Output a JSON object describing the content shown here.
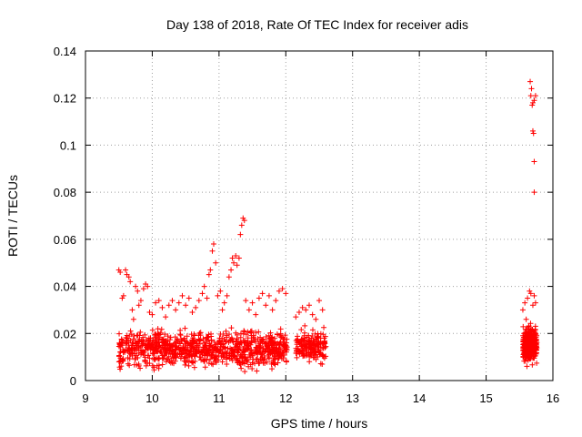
{
  "chart_data": {
    "type": "scatter",
    "title": "Day 138 of 2018, Rate Of TEC Index for receiver adis",
    "xlabel": "GPS time / hours",
    "ylabel": "ROTI / TECUs",
    "xlim": [
      9,
      16
    ],
    "ylim": [
      0,
      0.14
    ],
    "xticks": [
      9,
      10,
      11,
      12,
      13,
      14,
      15,
      16
    ],
    "yticks": [
      0,
      0.02,
      0.04,
      0.06,
      0.08,
      0.1,
      0.12,
      0.14
    ],
    "ytick_labels": [
      "0",
      "0.02",
      "0.04",
      "0.06",
      "0.08",
      "0.1",
      "0.12",
      "0.14"
    ],
    "grid": true,
    "marker": "+",
    "color": "#ff0000",
    "series": [
      {
        "name": "ROTI",
        "points": [
          [
            9.5,
            0.047
          ],
          [
            9.52,
            0.046
          ],
          [
            9.55,
            0.035
          ],
          [
            9.57,
            0.036
          ],
          [
            9.6,
            0.047
          ],
          [
            9.62,
            0.045
          ],
          [
            9.65,
            0.044
          ],
          [
            9.67,
            0.042
          ],
          [
            9.7,
            0.03
          ],
          [
            9.72,
            0.026
          ],
          [
            9.75,
            0.04
          ],
          [
            9.78,
            0.038
          ],
          [
            9.8,
            0.032
          ],
          [
            9.83,
            0.034
          ],
          [
            9.87,
            0.039
          ],
          [
            9.9,
            0.041
          ],
          [
            9.93,
            0.04
          ],
          [
            9.96,
            0.029
          ],
          [
            10.0,
            0.028
          ],
          [
            10.05,
            0.033
          ],
          [
            10.1,
            0.034
          ],
          [
            10.15,
            0.031
          ],
          [
            10.2,
            0.027
          ],
          [
            10.25,
            0.032
          ],
          [
            10.3,
            0.034
          ],
          [
            10.35,
            0.03
          ],
          [
            10.4,
            0.033
          ],
          [
            10.45,
            0.036
          ],
          [
            10.5,
            0.032
          ],
          [
            10.55,
            0.035
          ],
          [
            10.6,
            0.029
          ],
          [
            10.65,
            0.031
          ],
          [
            10.7,
            0.034
          ],
          [
            10.75,
            0.037
          ],
          [
            10.78,
            0.04
          ],
          [
            10.82,
            0.035
          ],
          [
            10.85,
            0.045
          ],
          [
            10.87,
            0.047
          ],
          [
            10.9,
            0.055
          ],
          [
            10.92,
            0.058
          ],
          [
            10.95,
            0.05
          ],
          [
            10.98,
            0.036
          ],
          [
            11.02,
            0.038
          ],
          [
            11.05,
            0.03
          ],
          [
            11.08,
            0.033
          ],
          [
            11.12,
            0.036
          ],
          [
            11.15,
            0.044
          ],
          [
            11.18,
            0.047
          ],
          [
            11.2,
            0.052
          ],
          [
            11.22,
            0.05
          ],
          [
            11.25,
            0.053
          ],
          [
            11.27,
            0.049
          ],
          [
            11.3,
            0.052
          ],
          [
            11.32,
            0.062
          ],
          [
            11.34,
            0.066
          ],
          [
            11.36,
            0.069
          ],
          [
            11.38,
            0.068
          ],
          [
            11.4,
            0.034
          ],
          [
            11.45,
            0.03
          ],
          [
            11.5,
            0.033
          ],
          [
            11.55,
            0.028
          ],
          [
            11.6,
            0.035
          ],
          [
            11.65,
            0.037
          ],
          [
            11.7,
            0.032
          ],
          [
            11.75,
            0.036
          ],
          [
            11.8,
            0.03
          ],
          [
            11.85,
            0.034
          ],
          [
            11.9,
            0.038
          ],
          [
            11.95,
            0.039
          ],
          [
            12.0,
            0.037
          ],
          [
            12.15,
            0.027
          ],
          [
            12.2,
            0.029
          ],
          [
            12.25,
            0.031
          ],
          [
            12.3,
            0.03
          ],
          [
            12.35,
            0.032
          ],
          [
            12.4,
            0.028
          ],
          [
            12.45,
            0.026
          ],
          [
            12.5,
            0.034
          ],
          [
            12.55,
            0.03
          ],
          [
            15.55,
            0.03
          ],
          [
            15.58,
            0.033
          ],
          [
            15.6,
            0.026
          ],
          [
            15.62,
            0.035
          ],
          [
            15.65,
            0.038
          ],
          [
            15.67,
            0.037
          ],
          [
            15.7,
            0.032
          ],
          [
            15.72,
            0.036
          ],
          [
            15.74,
            0.033
          ],
          [
            15.66,
            0.127
          ],
          [
            15.68,
            0.124
          ],
          [
            15.67,
            0.121
          ],
          [
            15.7,
            0.118
          ],
          [
            15.72,
            0.119
          ],
          [
            15.69,
            0.117
          ],
          [
            15.74,
            0.121
          ],
          [
            15.7,
            0.106
          ],
          [
            15.71,
            0.105
          ],
          [
            15.72,
            0.093
          ],
          [
            15.72,
            0.08
          ]
        ]
      }
    ],
    "dense_bands": [
      {
        "x_range": [
          9.5,
          12.02
        ],
        "y_range": [
          0.003,
          0.024
        ],
        "count": 950
      },
      {
        "x_range": [
          12.15,
          12.6
        ],
        "y_range": [
          0.005,
          0.024
        ],
        "count": 180
      },
      {
        "x_range": [
          15.55,
          15.76
        ],
        "y_range": [
          0.004,
          0.026
        ],
        "count": 320
      }
    ]
  }
}
